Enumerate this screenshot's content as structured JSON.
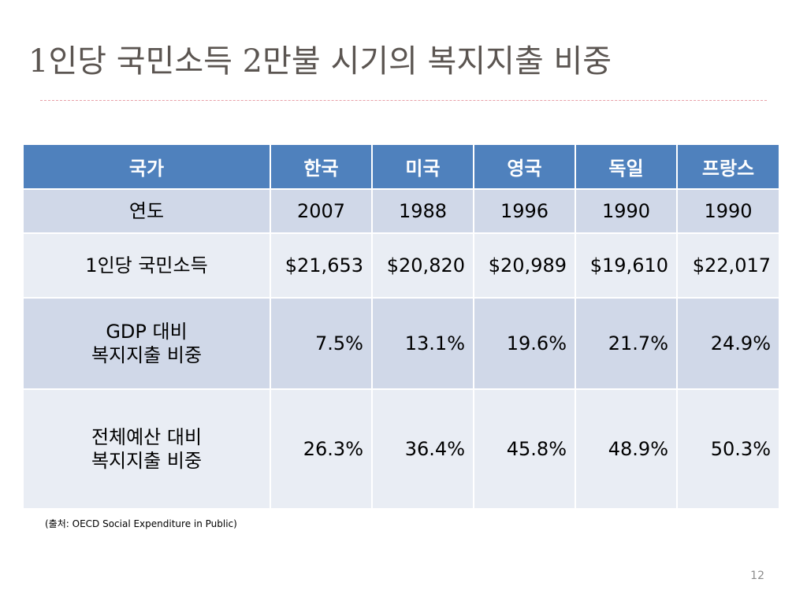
{
  "title": "1인당 국민소득 2만불 시기의 복지지출 비중",
  "table": {
    "header": {
      "label": "국가",
      "countries": [
        "한국",
        "미국",
        "영국",
        "독일",
        "프랑스"
      ]
    },
    "rows": [
      {
        "label_lines": [
          "연도"
        ],
        "values": [
          "2007",
          "1988",
          "1996",
          "1990",
          "1990"
        ]
      },
      {
        "label_lines": [
          "1인당 국민소득"
        ],
        "values": [
          "$21,653",
          "$20,820",
          "$20,989",
          "$19,610",
          "$22,017"
        ]
      },
      {
        "label_lines": [
          "GDP 대비",
          "복지지출 비중"
        ],
        "values": [
          "7.5%",
          "13.1%",
          "19.6%",
          "21.7%",
          "24.9%"
        ]
      },
      {
        "label_lines": [
          "전체예산 대비",
          "복지지출 비중"
        ],
        "values": [
          "26.3%",
          "36.4%",
          "45.8%",
          "48.9%",
          "50.3%"
        ]
      }
    ]
  },
  "source": "(출처: OECD Social Expenditure in Public)",
  "page_number": "12",
  "colors": {
    "header_bg": "#4f81bd",
    "band_dark": "#d0d8e8",
    "band_light": "#e9edf4",
    "title_text": "#5b5551",
    "rule": "#e8a0a8"
  }
}
